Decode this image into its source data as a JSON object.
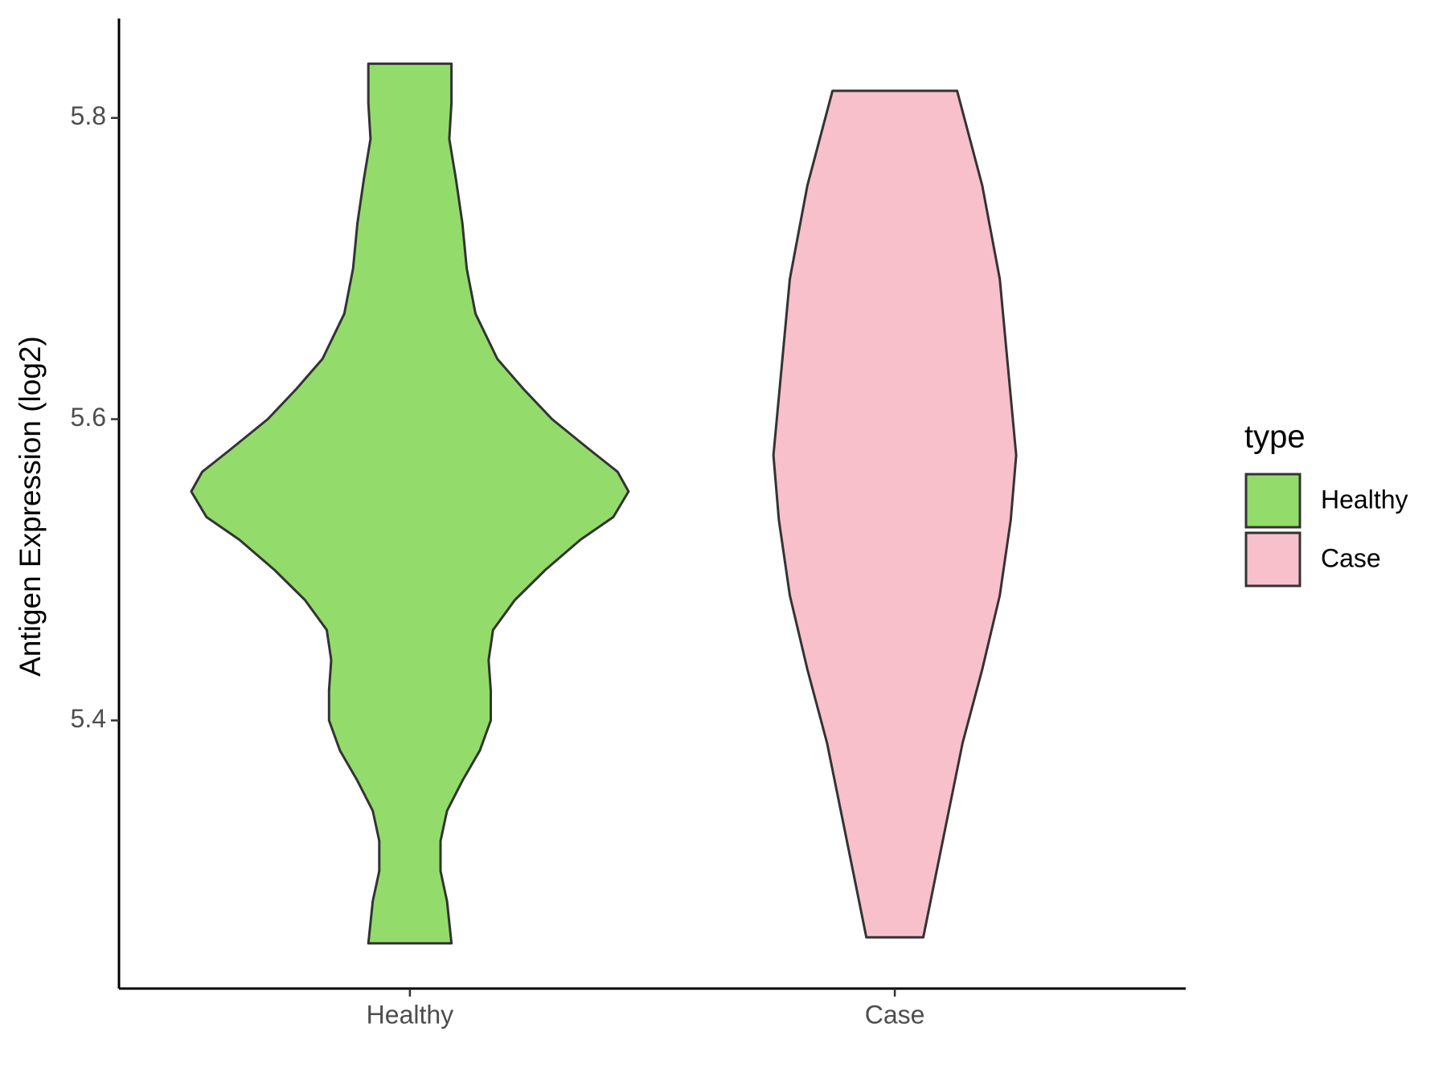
{
  "chart_data": {
    "type": "violin",
    "y_label": "Antigen Expression (log2)",
    "categories": [
      "Healthy",
      "Case"
    ],
    "ylim": [
      5.222,
      5.866
    ],
    "yticks": [
      5.4,
      5.6,
      5.8
    ],
    "legend_title": "type",
    "legend_position": "right",
    "series": [
      {
        "name": "Healthy",
        "color": "#93dc6b",
        "y": [
          5.836,
          5.81,
          5.786,
          5.76,
          5.73,
          5.7,
          5.67,
          5.64,
          5.62,
          5.6,
          5.58,
          5.565,
          5.552,
          5.535,
          5.52,
          5.5,
          5.48,
          5.46,
          5.44,
          5.42,
          5.4,
          5.38,
          5.36,
          5.34,
          5.32,
          5.3,
          5.28,
          5.252
        ],
        "density": [
          0.19,
          0.19,
          0.18,
          0.21,
          0.24,
          0.26,
          0.3,
          0.4,
          0.52,
          0.65,
          0.82,
          0.95,
          1.0,
          0.93,
          0.78,
          0.62,
          0.48,
          0.38,
          0.36,
          0.37,
          0.37,
          0.32,
          0.24,
          0.17,
          0.14,
          0.14,
          0.17,
          0.19
        ]
      },
      {
        "name": "Case",
        "color": "#f7c0cb",
        "y": [
          5.818,
          5.755,
          5.693,
          5.631,
          5.576,
          5.533,
          5.483,
          5.434,
          5.385,
          5.335,
          5.292,
          5.256
        ],
        "density": [
          0.285,
          0.4,
          0.48,
          0.52,
          0.555,
          0.53,
          0.48,
          0.4,
          0.31,
          0.24,
          0.18,
          0.13
        ]
      }
    ]
  }
}
